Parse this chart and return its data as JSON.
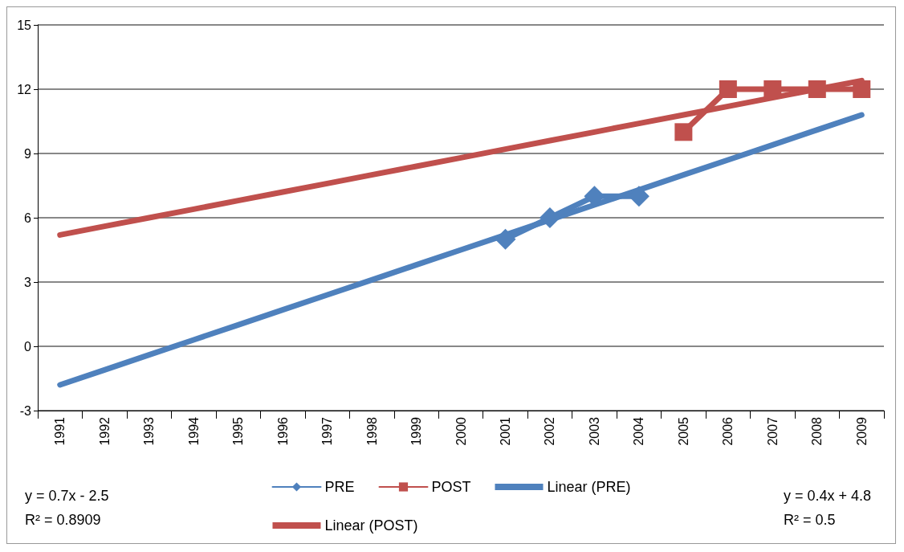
{
  "chart_data": {
    "type": "line",
    "categories": [
      "1991",
      "1992",
      "1993",
      "1994",
      "1995",
      "1996",
      "1997",
      "1998",
      "1999",
      "2000",
      "2001",
      "2002",
      "2003",
      "2004",
      "2005",
      "2006",
      "2007",
      "2008",
      "2009"
    ],
    "series": [
      {
        "name": "PRE",
        "color": "#4f81bd",
        "marker": "diamond",
        "values": [
          null,
          null,
          null,
          null,
          null,
          null,
          null,
          null,
          null,
          null,
          5,
          6,
          7,
          7,
          null,
          null,
          null,
          null,
          null
        ]
      },
      {
        "name": "POST",
        "color": "#c0504d",
        "marker": "square",
        "values": [
          null,
          null,
          null,
          null,
          null,
          null,
          null,
          null,
          null,
          null,
          null,
          null,
          null,
          null,
          10,
          12,
          12,
          12,
          12
        ]
      },
      {
        "name": "Linear (PRE)",
        "color": "#4f81bd",
        "marker": "none",
        "values": [
          -1.8,
          -1.1,
          -0.4,
          0.3,
          1.0,
          1.7,
          2.4,
          3.1,
          3.8,
          4.5,
          5.2,
          5.9,
          6.6,
          7.3,
          8.0,
          8.7,
          9.4,
          10.1,
          10.8
        ]
      },
      {
        "name": "Linear (POST)",
        "color": "#c0504d",
        "marker": "none",
        "values": [
          5.2,
          5.6,
          6.0,
          6.4,
          6.8,
          7.2,
          7.6,
          8.0,
          8.4,
          8.8,
          9.2,
          9.6,
          10.0,
          10.4,
          10.8,
          11.2,
          11.6,
          12.0,
          12.4
        ]
      }
    ],
    "ylim": [
      -3,
      15
    ],
    "yticks": [
      -3,
      0,
      3,
      6,
      9,
      12,
      15
    ],
    "grid": "y",
    "legend": "bottom",
    "annotations": [
      "y = 0.7x - 2.5\nR² = 0.8909",
      "y = 0.4x + 4.8\nR² = 0.5"
    ]
  }
}
